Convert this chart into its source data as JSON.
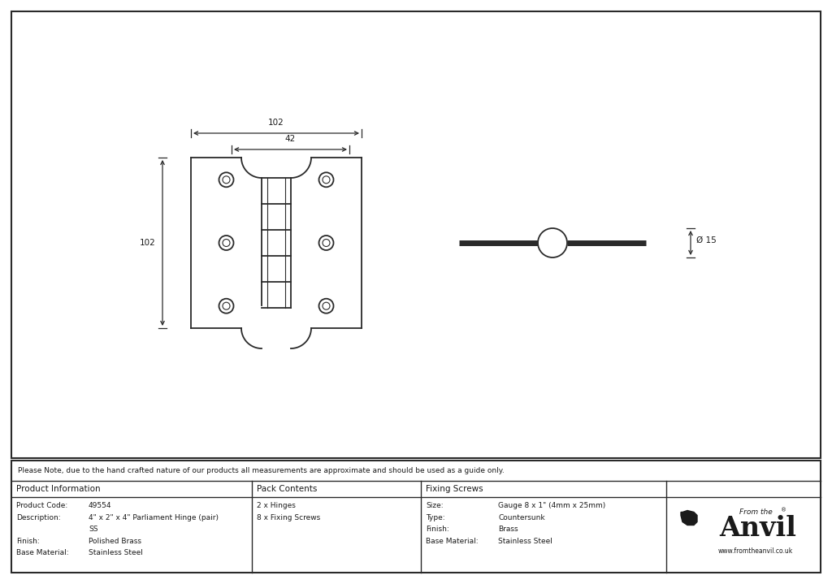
{
  "bg_color": "#ffffff",
  "border_color": "#2a2a2a",
  "line_color": "#2a2a2a",
  "dim_color": "#2a2a2a",
  "text_color": "#1a1a1a",
  "note_text": "Please Note, due to the hand crafted nature of our products all measurements are approximate and should be used as a guide only.",
  "product_info": {
    "header": "Product Information",
    "rows": [
      [
        "Product Code:",
        "49554"
      ],
      [
        "Description:",
        "4\" x 2\" x 4\" Parliament Hinge (pair)"
      ],
      [
        "",
        "SS"
      ],
      [
        "Finish:",
        "Polished Brass"
      ],
      [
        "Base Material:",
        "Stainless Steel"
      ]
    ]
  },
  "pack_contents": {
    "header": "Pack Contents",
    "rows": [
      [
        "2 x Hinges",
        ""
      ],
      [
        "8 x Fixing Screws",
        ""
      ]
    ]
  },
  "fixing_screws": {
    "header": "Fixing Screws",
    "rows": [
      [
        "Size:",
        "Gauge 8 x 1\" (4mm x 25mm)"
      ],
      [
        "Type:",
        "Countersunk"
      ],
      [
        "Finish:",
        "Brass"
      ],
      [
        "Base Material:",
        "Stainless Steel"
      ]
    ]
  },
  "dim_102_width": "102",
  "dim_42_width": "42",
  "dim_102_height": "102",
  "dim_15": "Ø 15"
}
